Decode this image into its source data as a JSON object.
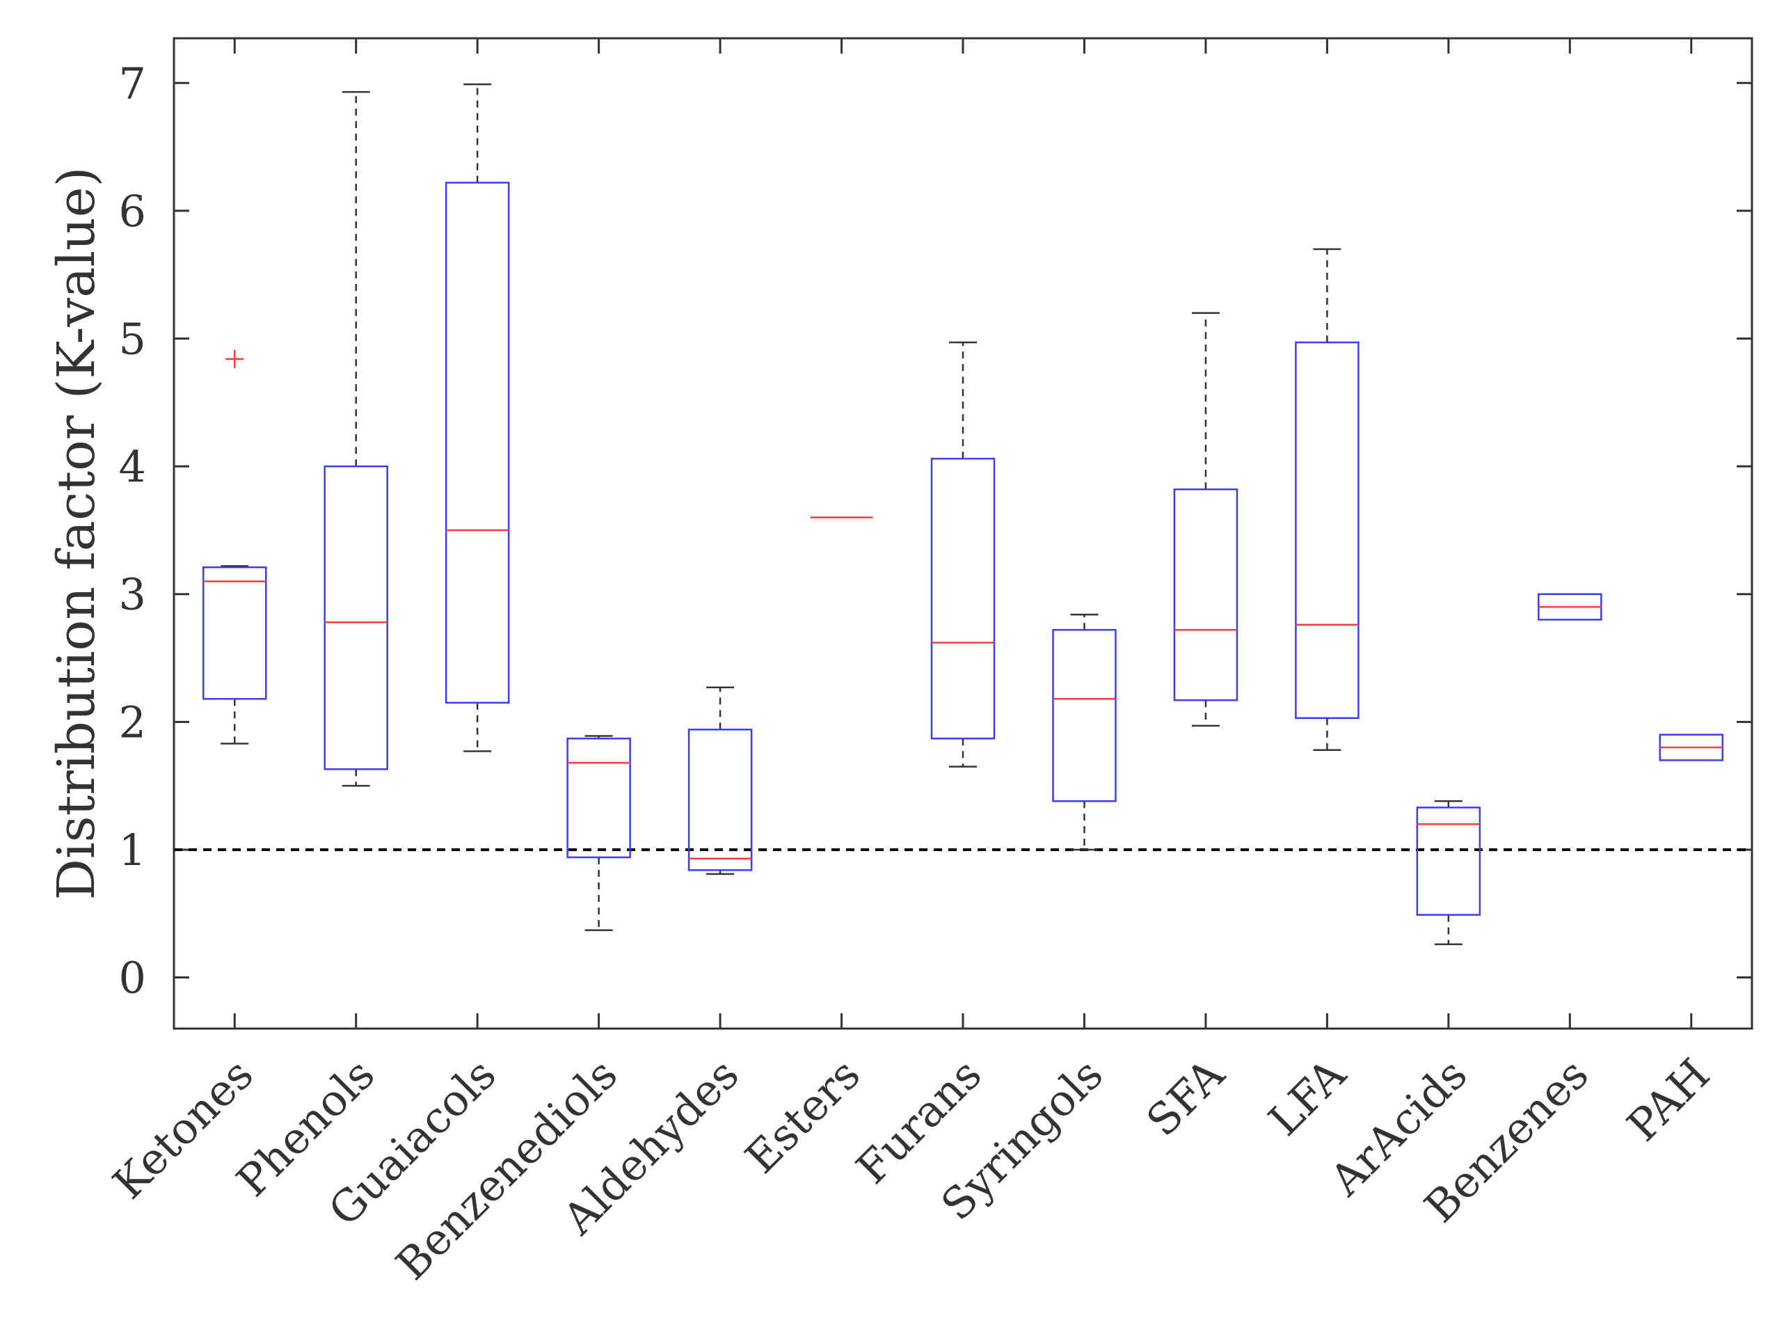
{
  "chart_data": {
    "type": "boxplot",
    "title": "",
    "xlabel": "",
    "ylabel": "Distribution factor (K-value)",
    "ylim": [
      -0.4,
      7.35
    ],
    "yticks": [
      0,
      1,
      2,
      3,
      4,
      5,
      6,
      7
    ],
    "grid": false,
    "reference_line": {
      "y": 1,
      "style": "dashed",
      "color": "#000000"
    },
    "colors": {
      "box": "#3b3bff",
      "median": "#ff3b3b",
      "whisker": "#333333",
      "outlier": "#ff3b3b",
      "axis": "#333333"
    },
    "categories": [
      "Ketones",
      "Phenols",
      "Guaiacols",
      "Benzenediols",
      "Aldehydes",
      "Esters",
      "Furans",
      "Syringols",
      "SFA",
      "LFA",
      "ArAcids",
      "Benzenes",
      "PAH"
    ],
    "boxes": [
      {
        "category": "Ketones",
        "min": 1.83,
        "q1": 2.18,
        "median": 3.1,
        "q3": 3.21,
        "max": 3.22,
        "outliers": [
          4.84
        ]
      },
      {
        "category": "Phenols",
        "min": 1.5,
        "q1": 1.63,
        "median": 2.78,
        "q3": 4.0,
        "max": 6.93,
        "outliers": []
      },
      {
        "category": "Guaiacols",
        "min": 1.77,
        "q1": 2.15,
        "median": 3.5,
        "q3": 6.22,
        "max": 6.99,
        "outliers": []
      },
      {
        "category": "Benzenediols",
        "min": 0.37,
        "q1": 0.94,
        "median": 1.68,
        "q3": 1.87,
        "max": 1.89,
        "outliers": []
      },
      {
        "category": "Aldehydes",
        "min": 0.81,
        "q1": 0.84,
        "median": 0.93,
        "q3": 1.94,
        "max": 2.27,
        "outliers": []
      },
      {
        "category": "Esters",
        "min": 3.6,
        "q1": 3.6,
        "median": 3.6,
        "q3": 3.6,
        "max": 3.6,
        "outliers": []
      },
      {
        "category": "Furans",
        "min": 1.65,
        "q1": 1.87,
        "median": 2.62,
        "q3": 4.06,
        "max": 4.97,
        "outliers": []
      },
      {
        "category": "Syringols",
        "min": 1.0,
        "q1": 1.38,
        "median": 2.18,
        "q3": 2.72,
        "max": 2.84,
        "outliers": []
      },
      {
        "category": "SFA",
        "min": 1.97,
        "q1": 2.17,
        "median": 2.72,
        "q3": 3.82,
        "max": 5.2,
        "outliers": []
      },
      {
        "category": "LFA",
        "min": 1.78,
        "q1": 2.03,
        "median": 2.76,
        "q3": 4.97,
        "max": 5.7,
        "outliers": []
      },
      {
        "category": "ArAcids",
        "min": 0.26,
        "q1": 0.49,
        "median": 1.2,
        "q3": 1.33,
        "max": 1.38,
        "outliers": []
      },
      {
        "category": "Benzenes",
        "min": 2.8,
        "q1": 2.8,
        "median": 2.9,
        "q3": 3.0,
        "max": 3.0,
        "outliers": []
      },
      {
        "category": "PAH",
        "min": 1.7,
        "q1": 1.7,
        "median": 1.8,
        "q3": 1.9,
        "max": 1.9,
        "outliers": []
      }
    ]
  }
}
